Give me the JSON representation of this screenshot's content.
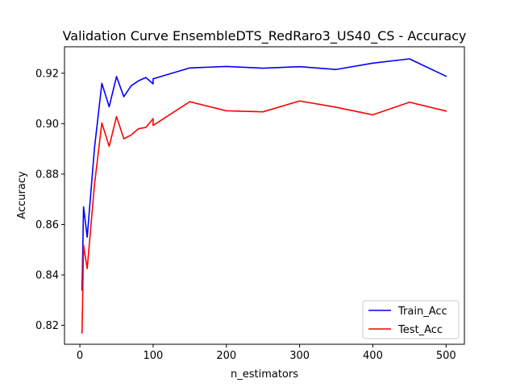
{
  "chart_data": {
    "type": "line",
    "title": "Validation Curve EnsembleDTS_RedRaro3_US40_CS - Accuracy",
    "xlabel": "n_estimators",
    "ylabel": "Accuracy",
    "xlim": [
      -21,
      525
    ],
    "ylim": [
      0.8125,
      0.9305
    ],
    "xticks": [
      0,
      100,
      200,
      300,
      400,
      500
    ],
    "xtick_labels": [
      "0",
      "100",
      "200",
      "300",
      "400",
      "500"
    ],
    "yticks": [
      0.82,
      0.84,
      0.86,
      0.88,
      0.9,
      0.92
    ],
    "ytick_labels": [
      "0.82",
      "0.84",
      "0.86",
      "0.88",
      "0.90",
      "0.92"
    ],
    "grid": false,
    "legend": "lower-right",
    "x": [
      3,
      5,
      10,
      20,
      30,
      40,
      50,
      60,
      70,
      80,
      90,
      100,
      100,
      150,
      200,
      250,
      300,
      350,
      400,
      450,
      500
    ],
    "series": [
      {
        "name": "Train_Acc",
        "color": "#0000ff",
        "values": [
          0.834,
          0.867,
          0.855,
          0.8905,
          0.916,
          0.9067,
          0.9187,
          0.9107,
          0.915,
          0.917,
          0.9183,
          0.9158,
          0.9178,
          0.9221,
          0.9227,
          0.922,
          0.9226,
          0.9215,
          0.924,
          0.9257,
          0.9188
        ]
      },
      {
        "name": "Test_Acc",
        "color": "#ff0000",
        "values": [
          0.817,
          0.8518,
          0.8425,
          0.876,
          0.9003,
          0.891,
          0.9028,
          0.894,
          0.8955,
          0.898,
          0.8985,
          0.902,
          0.8993,
          0.9087,
          0.9051,
          0.9047,
          0.909,
          0.9065,
          0.9035,
          0.9085,
          0.905
        ]
      }
    ]
  }
}
